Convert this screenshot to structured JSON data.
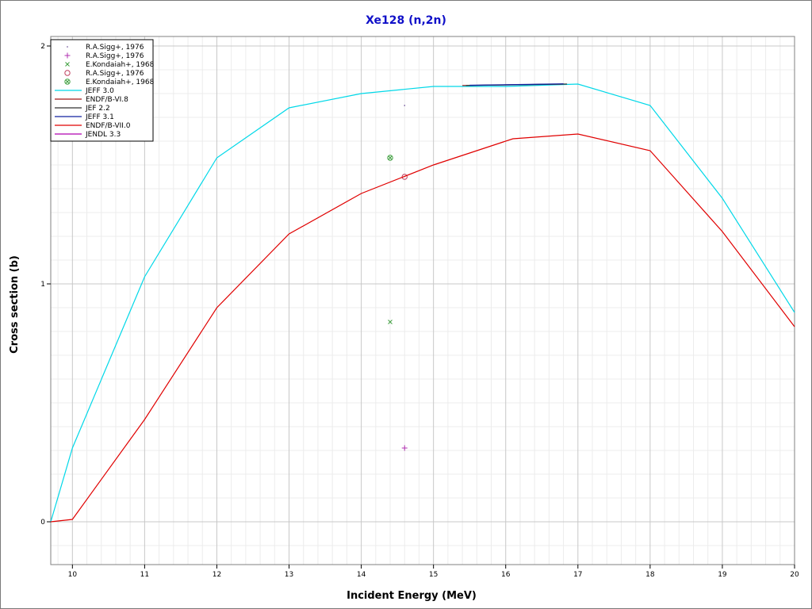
{
  "chart_data": {
    "type": "line",
    "title": "Xe128 (n,2n)",
    "xlabel": "Incident Energy (MeV)",
    "ylabel": "Cross section (b)",
    "xlim": [
      9.7,
      20
    ],
    "ylim": [
      -0.18,
      2.04
    ],
    "x_ticks": [
      10,
      11,
      12,
      13,
      14,
      15,
      16,
      17,
      18,
      19,
      20
    ],
    "y_ticks": [
      0,
      1,
      2
    ],
    "grid": true,
    "legend_position": "top-left",
    "series": [
      {
        "name": "R.A.Sigg+, 1976",
        "kind": "marker",
        "marker": "dot",
        "color": "#5a3a8a",
        "points": [
          [
            14.6,
            1.75
          ]
        ]
      },
      {
        "name": "R.A.Sigg+, 1976",
        "kind": "marker",
        "marker": "plus",
        "color": "#b030b0",
        "points": [
          [
            14.6,
            0.31
          ]
        ]
      },
      {
        "name": "E.Kondaiah+, 1968",
        "kind": "marker",
        "marker": "x",
        "color": "#40a040",
        "points": [
          [
            14.4,
            0.84
          ]
        ]
      },
      {
        "name": "R.A.Sigg+, 1976",
        "kind": "marker",
        "marker": "circle",
        "color": "#c04060",
        "points": [
          [
            14.6,
            1.45
          ]
        ]
      },
      {
        "name": "E.Kondaiah+, 1968",
        "kind": "marker",
        "marker": "circle-x",
        "color": "#40a040",
        "points": [
          [
            14.4,
            1.53
          ]
        ]
      },
      {
        "name": "JEFF 3.0",
        "kind": "line",
        "color": "#00d8e8",
        "points": [
          [
            9.7,
            0.0
          ],
          [
            10,
            0.31
          ],
          [
            11,
            1.03
          ],
          [
            12,
            1.53
          ],
          [
            13,
            1.74
          ],
          [
            14,
            1.8
          ],
          [
            15,
            1.83
          ],
          [
            16,
            1.83
          ],
          [
            17,
            1.84
          ],
          [
            18,
            1.75
          ],
          [
            19,
            1.36
          ],
          [
            20,
            0.88
          ]
        ]
      },
      {
        "name": "ENDF/B-VI.8",
        "kind": "line",
        "color": "#a01818",
        "points": [
          [
            15.4,
            1.834
          ],
          [
            16.8,
            1.84
          ]
        ]
      },
      {
        "name": "JEF 2.2",
        "kind": "line",
        "color": "#303030",
        "points": [
          [
            15.45,
            1.834
          ],
          [
            16.85,
            1.84
          ]
        ]
      },
      {
        "name": "JEFF 3.1",
        "kind": "line",
        "color": "#1020a0",
        "points": [
          [
            15.5,
            1.835
          ],
          [
            16.8,
            1.841
          ]
        ]
      },
      {
        "name": "ENDF/B-VII.0",
        "kind": "line",
        "color": "#e00000",
        "points": [
          [
            9.7,
            0.0
          ],
          [
            10,
            0.01
          ],
          [
            11,
            0.43
          ],
          [
            12,
            0.9
          ],
          [
            13,
            1.21
          ],
          [
            14,
            1.38
          ],
          [
            15,
            1.5
          ],
          [
            16.1,
            1.61
          ],
          [
            17,
            1.63
          ],
          [
            18,
            1.56
          ],
          [
            19,
            1.22
          ],
          [
            20,
            0.82
          ]
        ]
      },
      {
        "name": "JENDL 3.3",
        "kind": "line",
        "color": "#b000b0",
        "points": []
      }
    ]
  }
}
